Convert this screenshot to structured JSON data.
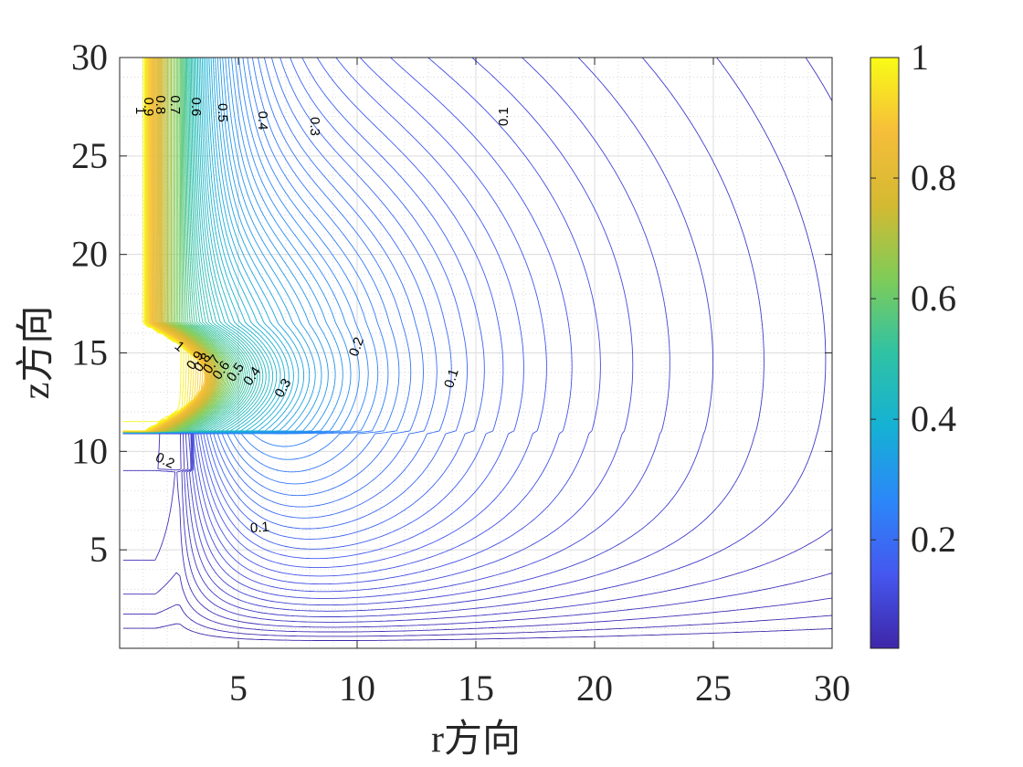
{
  "chart_data": {
    "type": "contour",
    "xlabel": "r方向",
    "ylabel": "z方向",
    "xlim": [
      0,
      30
    ],
    "ylim": [
      0,
      30
    ],
    "x_ticks": [
      "5",
      "10",
      "15",
      "20",
      "25",
      "30"
    ],
    "y_ticks": [
      "5",
      "10",
      "15",
      "20",
      "25",
      "30"
    ],
    "grid": "on (major solid, minor dotted)",
    "colormap": "parula",
    "colorbar": {
      "placement": "right",
      "range": [
        0.02,
        1
      ],
      "ticks": [
        "0.2",
        "0.4",
        "0.6",
        "0.8",
        "1"
      ]
    },
    "contour_level_step": 0.01,
    "contour_labels": [
      {
        "text": "0.1",
        "r": 16.2,
        "z": 27.0,
        "rot": -90
      },
      {
        "text": "0.3",
        "r": 8.2,
        "z": 26.5,
        "rot": 90
      },
      {
        "text": "0.4",
        "r": 6.0,
        "z": 26.8,
        "rot": 90
      },
      {
        "text": "0.5",
        "r": 4.3,
        "z": 27.2,
        "rot": 90
      },
      {
        "text": "0.6",
        "r": 3.2,
        "z": 27.5,
        "rot": 90
      },
      {
        "text": "0.7",
        "r": 2.3,
        "z": 27.6,
        "rot": 90
      },
      {
        "text": "0.8",
        "r": 1.7,
        "z": 27.6,
        "rot": 90
      },
      {
        "text": "0.9",
        "r": 1.2,
        "z": 27.5,
        "rot": 90
      },
      {
        "text": "1",
        "r": 0.85,
        "z": 27.3,
        "rot": 90
      },
      {
        "text": "0.2",
        "r": 10.0,
        "z": 15.3,
        "rot": -70
      },
      {
        "text": "0.1",
        "r": 14.0,
        "z": 13.7,
        "rot": -72
      },
      {
        "text": "0.3",
        "r": 6.9,
        "z": 13.2,
        "rot": -60
      },
      {
        "text": "0.4",
        "r": 5.6,
        "z": 13.8,
        "rot": -55
      },
      {
        "text": "0.5",
        "r": 4.9,
        "z": 14.0,
        "rot": -55
      },
      {
        "text": "0.6",
        "r": 4.3,
        "z": 14.1,
        "rot": -55
      },
      {
        "text": "0.7",
        "r": 3.9,
        "z": 14.4,
        "rot": -55
      },
      {
        "text": "0.8",
        "r": 3.5,
        "z": 14.5,
        "rot": -55
      },
      {
        "text": "0.9",
        "r": 3.2,
        "z": 14.6,
        "rot": -55
      },
      {
        "text": "1",
        "r": 2.5,
        "z": 15.3,
        "rot": 40
      },
      {
        "text": "0.2",
        "r": 1.9,
        "z": 9.5,
        "rot": 25
      },
      {
        "text": "0.1",
        "r": 5.9,
        "z": 6.1,
        "rot": -5
      }
    ]
  }
}
